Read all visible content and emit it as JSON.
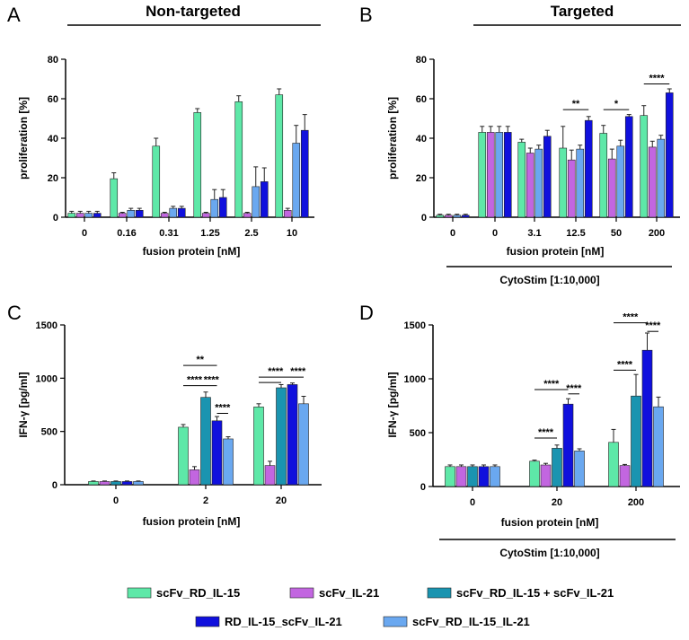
{
  "colors": {
    "scFv_RD_IL-15": "#5ee8a8",
    "scFv_IL-21": "#c266e0",
    "scFv_RD_IL-15 + scFv_IL-21": "#1a94b0",
    "RD_IL-15_scFv_IL-21": "#1010dd",
    "scFv_RD_IL-15_IL-21": "#6aa8f0"
  },
  "legend": [
    "scFv_RD_IL-15",
    "scFv_IL-21",
    "scFv_RD_IL-15 + scFv_IL-21",
    "RD_IL-15_scFv_IL-21",
    "scFv_RD_IL-15_IL-21"
  ],
  "chart_data": [
    {
      "panel": "A",
      "title": "Non-targeted",
      "type": "bar",
      "xlabel": "fusion protein [nM]",
      "ylabel": "proliferation [%]",
      "ylim": [
        0,
        80
      ],
      "yticks": [
        0,
        20,
        40,
        60,
        80
      ],
      "categories": [
        "0",
        "0.16",
        "0.31",
        "1.25",
        "2.5",
        "10"
      ],
      "series": [
        {
          "name": "scFv_RD_IL-15",
          "values": [
            2,
            19.5,
            36,
            53,
            58.5,
            62
          ],
          "errors": [
            1,
            3,
            4,
            2,
            3,
            3
          ]
        },
        {
          "name": "scFv_IL-21",
          "values": [
            2,
            2,
            2,
            2,
            2,
            3.5
          ],
          "errors": [
            1,
            0.5,
            0.5,
            0.5,
            0.5,
            1
          ]
        },
        {
          "name": "scFv_RD_IL-15_IL-21",
          "values": [
            2,
            3.5,
            4.5,
            9,
            15.5,
            37.5
          ],
          "errors": [
            1,
            1,
            1,
            5,
            10,
            9
          ]
        },
        {
          "name": "RD_IL-15_scFv_IL-21",
          "values": [
            2,
            3.5,
            4.5,
            10,
            18,
            44
          ],
          "errors": [
            1,
            1,
            1,
            4,
            7,
            8
          ]
        }
      ],
      "brackets": []
    },
    {
      "panel": "B",
      "title": "Targeted",
      "type": "bar",
      "xlabel": "fusion protein [nM]",
      "ylabel": "proliferation [%]",
      "ylim": [
        0,
        80
      ],
      "yticks": [
        0,
        20,
        40,
        60,
        80
      ],
      "categories": [
        "0",
        "0",
        "3.1",
        "12.5",
        "50",
        "200"
      ],
      "underlabel": "CytoStim [1:10,000]",
      "series": [
        {
          "name": "scFv_RD_IL-15",
          "values": [
            1,
            43,
            38,
            35,
            42.5,
            51.5
          ],
          "errors": [
            0.5,
            3,
            1.5,
            11,
            4,
            5
          ]
        },
        {
          "name": "scFv_IL-21",
          "values": [
            1,
            43,
            32.5,
            29,
            29.5,
            35.5
          ],
          "errors": [
            0.5,
            3,
            2.5,
            5,
            5,
            3
          ]
        },
        {
          "name": "scFv_RD_IL-15_IL-21",
          "values": [
            1,
            43,
            34.5,
            34.5,
            36,
            39.5
          ],
          "errors": [
            0.5,
            3,
            2,
            2,
            3,
            2
          ]
        },
        {
          "name": "RD_IL-15_scFv_IL-21",
          "values": [
            1,
            43,
            41,
            49,
            51,
            63
          ],
          "errors": [
            0.5,
            3,
            3,
            2,
            1,
            2
          ]
        }
      ],
      "brackets": [
        {
          "group": 3,
          "from": 0,
          "to": 3,
          "y": 54.5,
          "label": "**"
        },
        {
          "group": 4,
          "from": 0,
          "to": 3,
          "y": 54.5,
          "label": "*"
        },
        {
          "group": 5,
          "from": 0,
          "to": 3,
          "y": 67.5,
          "label": "****"
        }
      ]
    },
    {
      "panel": "C",
      "title": "",
      "type": "bar",
      "xlabel": "fusion protein [nM]",
      "ylabel": "IFN-γ [pg/ml]",
      "ylim": [
        0,
        1500
      ],
      "yticks": [
        0,
        500,
        1000,
        1500
      ],
      "categories": [
        "0",
        "2",
        "20"
      ],
      "series": [
        {
          "name": "scFv_RD_IL-15",
          "values": [
            30,
            540,
            730
          ],
          "errors": [
            5,
            25,
            30
          ]
        },
        {
          "name": "scFv_IL-21",
          "values": [
            30,
            140,
            180
          ],
          "errors": [
            5,
            30,
            40
          ]
        },
        {
          "name": "scFv_RD_IL-15 + scFv_IL-21",
          "values": [
            30,
            820,
            910
          ],
          "errors": [
            5,
            50,
            30
          ]
        },
        {
          "name": "RD_IL-15_scFv_IL-21",
          "values": [
            30,
            600,
            940
          ],
          "errors": [
            5,
            40,
            15
          ]
        },
        {
          "name": "scFv_RD_IL-15_IL-21",
          "values": [
            30,
            430,
            760
          ],
          "errors": [
            5,
            20,
            70
          ]
        }
      ],
      "brackets": [
        {
          "group": 1,
          "from": 0,
          "to": 3,
          "y": 1120,
          "label": "**"
        },
        {
          "group": 1,
          "from": 0,
          "to": 2,
          "y": 930,
          "label": "****"
        },
        {
          "group": 1,
          "from": 2,
          "to": 3,
          "y": 930,
          "label": "****"
        },
        {
          "group": 1,
          "from": 3,
          "to": 4,
          "y": 670,
          "label": "****"
        },
        {
          "group": 2,
          "from": 0,
          "to": 3,
          "y": 1010,
          "label": "****"
        },
        {
          "group": 2,
          "from": 0,
          "to": 2,
          "y": 960,
          "label": ""
        },
        {
          "group": 2,
          "from": 3,
          "to": 4,
          "y": 1010,
          "label": "****"
        }
      ]
    },
    {
      "panel": "D",
      "title": "",
      "type": "bar",
      "xlabel": "fusion protein [nM]",
      "ylabel": "IFN-γ [pg/ml]",
      "ylim": [
        0,
        1500
      ],
      "yticks": [
        0,
        500,
        1000,
        1500
      ],
      "categories": [
        "0",
        "20",
        "200"
      ],
      "underlabel": "CytoStim [1:10,000]",
      "series": [
        {
          "name": "scFv_RD_IL-15",
          "values": [
            185,
            235,
            410
          ],
          "errors": [
            15,
            10,
            120
          ]
        },
        {
          "name": "scFv_IL-21",
          "values": [
            185,
            200,
            195
          ],
          "errors": [
            15,
            15,
            10
          ]
        },
        {
          "name": "scFv_RD_IL-15 + scFv_IL-21",
          "values": [
            185,
            355,
            840
          ],
          "errors": [
            15,
            30,
            200
          ]
        },
        {
          "name": "RD_IL-15_scFv_IL-21",
          "values": [
            185,
            765,
            1265
          ],
          "errors": [
            15,
            50,
            160
          ]
        },
        {
          "name": "scFv_RD_IL-15_IL-21",
          "values": [
            185,
            330,
            740
          ],
          "errors": [
            15,
            20,
            90
          ]
        }
      ],
      "brackets": [
        {
          "group": 1,
          "from": 0,
          "to": 2,
          "y": 450,
          "label": "****"
        },
        {
          "group": 1,
          "from": 0,
          "to": 3,
          "y": 900,
          "label": "****"
        },
        {
          "group": 1,
          "from": 3,
          "to": 4,
          "y": 860,
          "label": "****"
        },
        {
          "group": 2,
          "from": 0,
          "to": 2,
          "y": 1080,
          "label": "****"
        },
        {
          "group": 2,
          "from": 0,
          "to": 3,
          "y": 1520,
          "label": "****"
        },
        {
          "group": 2,
          "from": 3,
          "to": 4,
          "y": 1440,
          "label": "****"
        }
      ]
    }
  ]
}
